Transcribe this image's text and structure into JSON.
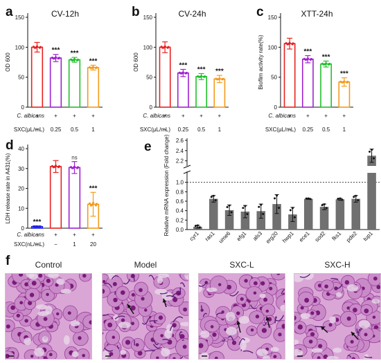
{
  "panels": [
    {
      "id": "a",
      "letter": "a",
      "title": "CV-12h",
      "ylabel": "OD 600",
      "ylim": [
        0,
        150
      ],
      "ticks": [
        0,
        50,
        100,
        150
      ],
      "bars": [
        100,
        82,
        79,
        66
      ],
      "errs": [
        8,
        6,
        4,
        4
      ],
      "colors": [
        "#e8201e",
        "#a020d0",
        "#1fbf2a",
        "#f39a1a"
      ],
      "sig": [
        "",
        "***",
        "***",
        "***"
      ],
      "rows": [
        {
          "label": "C. albicans",
          "values": [
            "+",
            "+",
            "+",
            "+"
          ]
        },
        {
          "label": "SXC(μL/mL)",
          "values": [
            "−",
            "0.25",
            "0.5",
            "1"
          ]
        }
      ]
    },
    {
      "id": "b",
      "letter": "b",
      "title": "CV-24h",
      "ylabel": "OD 600",
      "ylim": [
        0,
        150
      ],
      "ticks": [
        0,
        50,
        100,
        150
      ],
      "bars": [
        100,
        57,
        51,
        47
      ],
      "errs": [
        9,
        6,
        5,
        6
      ],
      "colors": [
        "#e8201e",
        "#a020d0",
        "#1fbf2a",
        "#f39a1a"
      ],
      "sig": [
        "",
        "***",
        "***",
        "***"
      ],
      "rows": [
        {
          "label": "C. albicans",
          "values": [
            "+",
            "+",
            "+",
            "+"
          ]
        },
        {
          "label": "SXC(μL/mL)",
          "values": [
            "−",
            "0.25",
            "0.5",
            "1"
          ]
        }
      ]
    },
    {
      "id": "c",
      "letter": "c",
      "title": "XTT-24h",
      "ylabel": "Bioflim activity rate(%)",
      "ylim": [
        0,
        150
      ],
      "ticks": [
        0,
        50,
        100,
        150
      ],
      "bars": [
        106,
        80,
        72,
        42
      ],
      "errs": [
        9,
        6,
        5,
        7
      ],
      "colors": [
        "#e8201e",
        "#a020d0",
        "#1fbf2a",
        "#f39a1a"
      ],
      "sig": [
        "",
        "***",
        "***",
        "***"
      ],
      "rows": [
        {
          "label": "C. albicans",
          "values": [
            "+",
            "+",
            "+",
            "+"
          ]
        },
        {
          "label": "SXC(μL/mL)",
          "values": [
            "−",
            "0.25",
            "0.5",
            "1"
          ]
        }
      ]
    },
    {
      "id": "d",
      "letter": "d",
      "title": "",
      "ylabel": "LDH release rate in A431(%)",
      "ylim": [
        0,
        40
      ],
      "ticks": [
        0,
        10,
        20,
        30,
        40
      ],
      "bars": [
        0.8,
        31,
        30.5,
        12
      ],
      "errs": [
        0.3,
        3,
        3,
        6
      ],
      "colors": [
        "#2020e0",
        "#e8201e",
        "#a020d0",
        "#f39a1a"
      ],
      "sig": [
        "***",
        "",
        "ns",
        "***"
      ],
      "rows": [
        {
          "label": "C. albicans",
          "values": [
            "−",
            "+",
            "+",
            "+"
          ]
        },
        {
          "label": "SXC(nL/mL)",
          "values": [
            "−",
            "−",
            "1",
            "20"
          ]
        }
      ]
    }
  ],
  "panel_e": {
    "letter": "e",
    "ylabel": "Relative mRNA expression (Fold change)",
    "upper_ticks": [
      "2.2",
      "2.4",
      "2.6"
    ],
    "lower_ticks": [
      "0.0",
      "0.2",
      "0.4",
      "0.6",
      "0.8",
      "1.0"
    ],
    "categories": [
      "cyr1",
      "ras1",
      "ume6",
      "efg1",
      "als3",
      "erg20",
      "hwp1",
      "ece1",
      "sod2",
      "fks1",
      "pde2",
      "tup1"
    ],
    "values": [
      0.06,
      0.65,
      0.41,
      0.38,
      0.39,
      0.54,
      0.32,
      0.65,
      0.48,
      0.64,
      0.65,
      2.3
    ],
    "errs": [
      0.03,
      0.07,
      0.11,
      0.13,
      0.15,
      0.2,
      0.15,
      0.01,
      0.06,
      0.02,
      0.07,
      0.13
    ],
    "reference_line": 1.0,
    "bar_color": "#707070"
  },
  "panel_f": {
    "letter": "f",
    "titles": [
      "Control",
      "Model",
      "SXC-L",
      "SXC-H"
    ]
  }
}
